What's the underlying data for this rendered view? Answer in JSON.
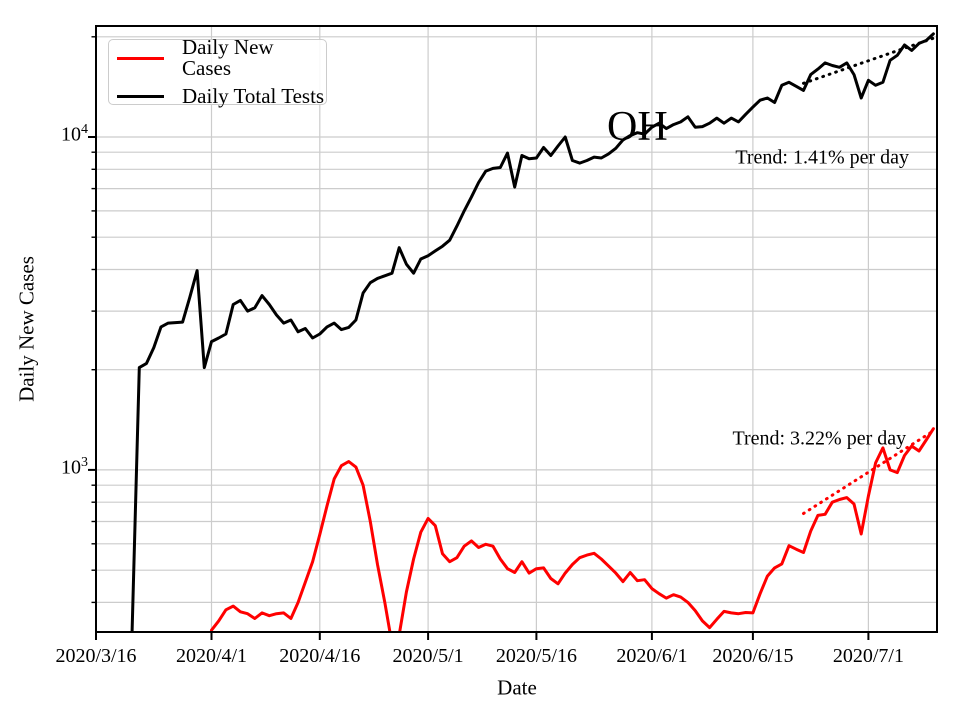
{
  "chart_data": {
    "type": "line",
    "title": "",
    "xlabel": "Date",
    "ylabel": "Daily New Cases",
    "yscale": "log",
    "grid": true,
    "grid_color": "#cccccc",
    "background": "#ffffff",
    "x_axis": {
      "start_date": "2020/3/16",
      "end_day_offset": 116.5,
      "ticks": [
        {
          "label": "2020/3/16",
          "day": 0
        },
        {
          "label": "2020/4/1",
          "day": 16
        },
        {
          "label": "2020/4/16",
          "day": 31
        },
        {
          "label": "2020/5/1",
          "day": 46
        },
        {
          "label": "2020/5/16",
          "day": 61
        },
        {
          "label": "2020/6/1",
          "day": 77
        },
        {
          "label": "2020/6/15",
          "day": 91
        },
        {
          "label": "2020/7/1",
          "day": 107
        }
      ]
    },
    "y_axis": {
      "lim": [
        326,
        21550
      ],
      "major_ticks": [
        {
          "base": "10",
          "exp": "4",
          "value": 10000
        },
        {
          "base": "10",
          "exp": "3",
          "value": 1000
        }
      ],
      "minor_tick_values": [
        400,
        500,
        600,
        700,
        800,
        900,
        2000,
        3000,
        4000,
        5000,
        6000,
        7000,
        8000,
        9000,
        20000
      ],
      "gridline_values": [
        400,
        500,
        600,
        700,
        800,
        900,
        1000,
        2000,
        3000,
        4000,
        5000,
        6000,
        7000,
        8000,
        9000,
        10000,
        20000
      ]
    },
    "legend": {
      "position": "upper left",
      "entries": [
        {
          "label": "Daily New Cases",
          "color": "#ff0000"
        },
        {
          "label": "Daily Total Tests",
          "color": "#000000"
        }
      ]
    },
    "annotations": [
      {
        "text": "OH",
        "day": 75,
        "value": 10700,
        "font_px": 42
      },
      {
        "text": "Trend: 1.41% per day",
        "day": 100.6,
        "value": 8650,
        "font_px": 20
      },
      {
        "text": "Trend: 3.22% per day",
        "day": 100.2,
        "value": 1240,
        "font_px": 20
      }
    ],
    "trend_lines": [
      {
        "series": "Daily Total Tests",
        "color": "#000000",
        "style": "dotted",
        "start": {
          "date": "2020/6/22",
          "value": 14500
        },
        "end": {
          "date": "2020/7/10",
          "value": 19800
        },
        "label": "Trend: 1.41% per day"
      },
      {
        "series": "Daily New Cases",
        "color": "#ff0000",
        "style": "dotted",
        "start": {
          "date": "2020/6/22",
          "value": 740
        },
        "end": {
          "date": "2020/7/10",
          "value": 1310
        },
        "label": "Trend: 3.22% per day"
      }
    ],
    "series": [
      {
        "name": "Daily New Cases",
        "color": "#ff0000",
        "width": 3,
        "start_date": "2020/4/1",
        "values": [
          330,
          352,
          380,
          390,
          375,
          370,
          358,
          372,
          365,
          370,
          372,
          358,
          400,
          460,
          530,
          640,
          780,
          940,
          1030,
          1060,
          1020,
          900,
          700,
          520,
          400,
          300,
          320,
          430,
          540,
          650,
          715,
          680,
          560,
          530,
          545,
          590,
          612,
          585,
          598,
          590,
          540,
          505,
          492,
          530,
          490,
          505,
          508,
          472,
          455,
          490,
          520,
          545,
          555,
          562,
          540,
          515,
          490,
          462,
          492,
          465,
          468,
          440,
          425,
          412,
          422,
          415,
          400,
          378,
          352,
          336,
          356,
          376,
          372,
          370,
          373,
          372,
          425,
          480,
          508,
          522,
          592,
          578,
          565,
          655,
          730,
          736,
          800,
          815,
          826,
          790,
          642,
          835,
          1050,
          1165,
          1000,
          982,
          1105,
          1180,
          1140,
          1230,
          1330
        ]
      },
      {
        "name": "Daily Total Tests",
        "color": "#000000",
        "width": 3,
        "start_date": "2020/3/21",
        "values": [
          328,
          2030,
          2090,
          2330,
          2690,
          2760,
          2770,
          2780,
          3300,
          3970,
          2030,
          2430,
          2490,
          2560,
          3140,
          3230,
          3000,
          3070,
          3340,
          3140,
          2920,
          2760,
          2820,
          2600,
          2660,
          2490,
          2560,
          2690,
          2760,
          2640,
          2680,
          2820,
          3400,
          3650,
          3760,
          3830,
          3900,
          4650,
          4150,
          3900,
          4300,
          4400,
          4550,
          4700,
          4900,
          5400,
          6000,
          6600,
          7300,
          7900,
          8050,
          8100,
          8950,
          7070,
          8800,
          8600,
          8650,
          9300,
          8800,
          9400,
          10000,
          8500,
          8350,
          8500,
          8700,
          8650,
          8900,
          9250,
          9800,
          10100,
          10300,
          10200,
          10700,
          11000,
          10600,
          10900,
          11100,
          11500,
          10700,
          10750,
          11000,
          11400,
          11000,
          11400,
          11100,
          11700,
          12300,
          12900,
          13100,
          12700,
          14300,
          14600,
          14200,
          13800,
          15400,
          16000,
          16700,
          16400,
          16200,
          16700,
          15400,
          13100,
          14800,
          14300,
          14600,
          17000,
          17600,
          18900,
          18200,
          19100,
          19500,
          20400
        ]
      }
    ]
  }
}
